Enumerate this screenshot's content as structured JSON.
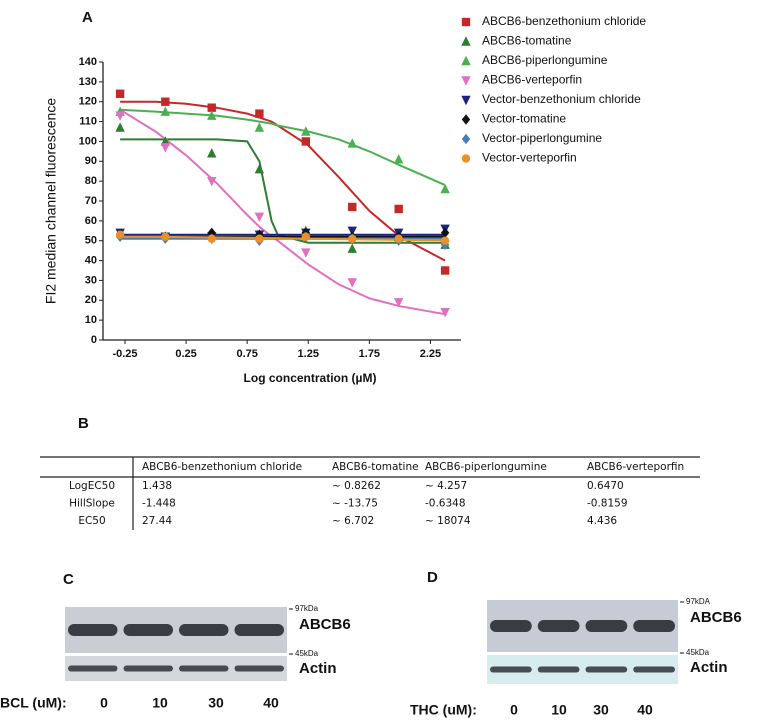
{
  "panel_labels": {
    "a": "A",
    "b": "B"
  },
  "chart_data": {
    "type": "scatter",
    "xlabel": "Log concentration (µM)",
    "ylabel": "FI2 median channel fluorescence",
    "xlim": [
      -0.43,
      2.5
    ],
    "ylim": [
      0,
      140
    ],
    "xticks": [
      -0.25,
      0.25,
      0.75,
      1.25,
      1.75,
      2.25
    ],
    "yticks": [
      0,
      10,
      20,
      30,
      40,
      50,
      60,
      70,
      80,
      90,
      100,
      110,
      120,
      130,
      140
    ],
    "x": [
      -0.29,
      0.08,
      0.46,
      0.85,
      1.23,
      1.61,
      1.99,
      2.37
    ],
    "fit_x": [
      -0.29,
      0,
      0.25,
      0.5,
      0.75,
      0.85,
      0.95,
      1,
      1.25,
      1.5,
      1.75,
      2,
      2.37
    ],
    "series": [
      {
        "name": "ABCB6-benzethonium chloride",
        "color": "#c62828",
        "marker": "square",
        "values": [
          124,
          120,
          117,
          114,
          100,
          67,
          66,
          35
        ],
        "fit": [
          120,
          120,
          119,
          117,
          114,
          112,
          110,
          108,
          98,
          82,
          65,
          52,
          40
        ]
      },
      {
        "name": "ABCB6-tomatine",
        "color": "#2e7d32",
        "marker": "triangle",
        "values": [
          107,
          100,
          94,
          86,
          55,
          46,
          52,
          48
        ],
        "fit": [
          101,
          101,
          101,
          101,
          100,
          90,
          60,
          53,
          49,
          49,
          49,
          49,
          49
        ]
      },
      {
        "name": "ABCB6-piperlongumine",
        "color": "#4caf50",
        "marker": "triangle",
        "values": [
          115,
          115,
          113,
          107,
          105,
          99,
          91,
          76
        ],
        "fit": [
          116,
          115,
          114,
          113,
          111,
          110,
          109,
          108,
          105,
          101,
          95,
          88,
          78
        ]
      },
      {
        "name": "ABCB6-verteporfin",
        "color": "#e070c0",
        "marker": "triangle-down",
        "values": [
          113,
          97,
          80,
          62,
          44,
          29,
          19,
          14
        ],
        "fit": [
          116,
          105,
          93,
          79,
          63,
          57,
          52,
          50,
          38,
          28,
          21,
          17,
          13
        ]
      },
      {
        "name": "Vector-benzethonium chloride",
        "color": "#1a237e",
        "marker": "triangle-down",
        "values": [
          54,
          52,
          52,
          53,
          54,
          55,
          54,
          56
        ],
        "fit": [
          53,
          53,
          53,
          53,
          53,
          53,
          53,
          53,
          53,
          53,
          53,
          53,
          53
        ]
      },
      {
        "name": "Vector-tomatine",
        "color": "#111111",
        "marker": "diamond",
        "values": [
          53,
          52,
          54,
          53,
          54,
          52,
          52,
          54
        ],
        "fit": [
          52,
          52,
          52,
          52,
          52,
          52,
          52,
          52,
          52,
          52,
          52,
          52,
          52
        ]
      },
      {
        "name": "Vector-piperlongumine",
        "color": "#4a7fb5",
        "marker": "diamond",
        "values": [
          52,
          51,
          51,
          50,
          52,
          51,
          50,
          48
        ],
        "fit": [
          51,
          51,
          51,
          51,
          51,
          51,
          51,
          51,
          51,
          51,
          51,
          51,
          51
        ]
      },
      {
        "name": "Vector-verteporfin",
        "color": "#e8902a",
        "marker": "circle",
        "values": [
          53,
          52,
          51,
          51,
          52,
          51,
          51,
          50
        ],
        "fit": [
          52,
          52,
          51.8,
          51.6,
          51.5,
          51.4,
          51.3,
          51.3,
          51,
          50.8,
          50.6,
          50.4,
          50.2
        ]
      }
    ]
  },
  "table": {
    "header": [
      "ABCB6-benzethonium chloride",
      "ABCB6-tomatine",
      "ABCB6-piperlongumine",
      "ABCB6-verteporfin"
    ],
    "rows": [
      [
        "LogEC50",
        "1.438",
        "~ 0.8262",
        "~ 4.257",
        "0.6470"
      ],
      [
        "HillSlope",
        "-1.448",
        "~ -13.75",
        "-0.6348",
        "-0.8159"
      ],
      [
        "EC50",
        "27.44",
        "~ 6.702",
        "~ 18074",
        "4.436"
      ]
    ]
  },
  "blots": [
    {
      "label": "C",
      "top_marker": "97kDa",
      "top_protein": "ABCB6",
      "bottom_marker": "45kDa",
      "bottom_protein": "Actin",
      "treatment": "BCL (uM):",
      "lanes": [
        "0",
        "10",
        "30",
        "40"
      ]
    },
    {
      "label": "D",
      "top_marker": "97kDA",
      "top_protein": "ABCB6",
      "bottom_marker": "45kDa",
      "bottom_protein": "Actin",
      "treatment": "THC (uM):",
      "lanes": [
        "0",
        "10",
        "30",
        "40"
      ]
    }
  ]
}
